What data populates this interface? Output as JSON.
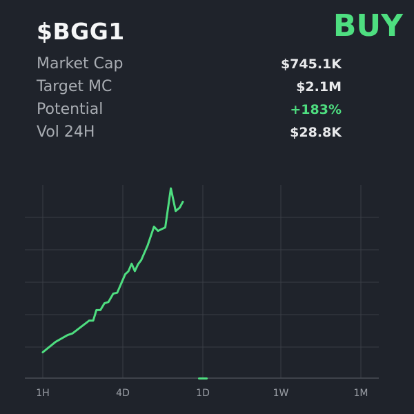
{
  "header": {
    "ticker": "$BGG1",
    "signal": "BUY"
  },
  "stats": [
    {
      "label": "Market Cap",
      "value": "$745.1K",
      "color": "#e9eaec"
    },
    {
      "label": "Target MC",
      "value": "$2.1M",
      "color": "#e9eaec"
    },
    {
      "label": "Potential",
      "value": "+183%",
      "color": "#4ede80"
    },
    {
      "label": "Vol 24H",
      "value": "$28.8K",
      "color": "#e9eaec"
    }
  ],
  "colors": {
    "background": "#1f232b",
    "accent": "#4ede80",
    "grid": "#3a3e46",
    "muted_text": "#a9adb3"
  },
  "chart_data": {
    "type": "line",
    "x_ticks": [
      "1H",
      "4D",
      "1D",
      "1W",
      "1M"
    ],
    "selected_range": "1D",
    "grid": true,
    "y_ticks_visible": false,
    "ylim": [
      0,
      100
    ],
    "series": [
      {
        "values": [
          [
            0,
            13.4
          ],
          [
            0.16,
            18.8
          ],
          [
            0.31,
            22.3
          ],
          [
            0.37,
            23.1
          ],
          [
            0.58,
            29.8
          ],
          [
            0.63,
            29.8
          ],
          [
            0.67,
            35.2
          ],
          [
            0.72,
            35.2
          ],
          [
            0.77,
            38.7
          ],
          [
            0.82,
            39.4
          ],
          [
            0.88,
            43.7
          ],
          [
            0.93,
            44.2
          ],
          [
            1.03,
            53.8
          ],
          [
            1.07,
            55.3
          ],
          [
            1.11,
            59.2
          ],
          [
            1.15,
            55.4
          ],
          [
            1.19,
            58.9
          ],
          [
            1.23,
            61.1
          ],
          [
            1.27,
            64.9
          ],
          [
            1.31,
            68.7
          ],
          [
            1.39,
            78.4
          ],
          [
            1.44,
            76.2
          ],
          [
            1.49,
            77.2
          ],
          [
            1.53,
            78.0
          ],
          [
            1.6,
            98.2
          ],
          [
            1.66,
            86.5
          ],
          [
            1.71,
            88.2
          ],
          [
            1.75,
            91.3
          ]
        ]
      }
    ]
  }
}
